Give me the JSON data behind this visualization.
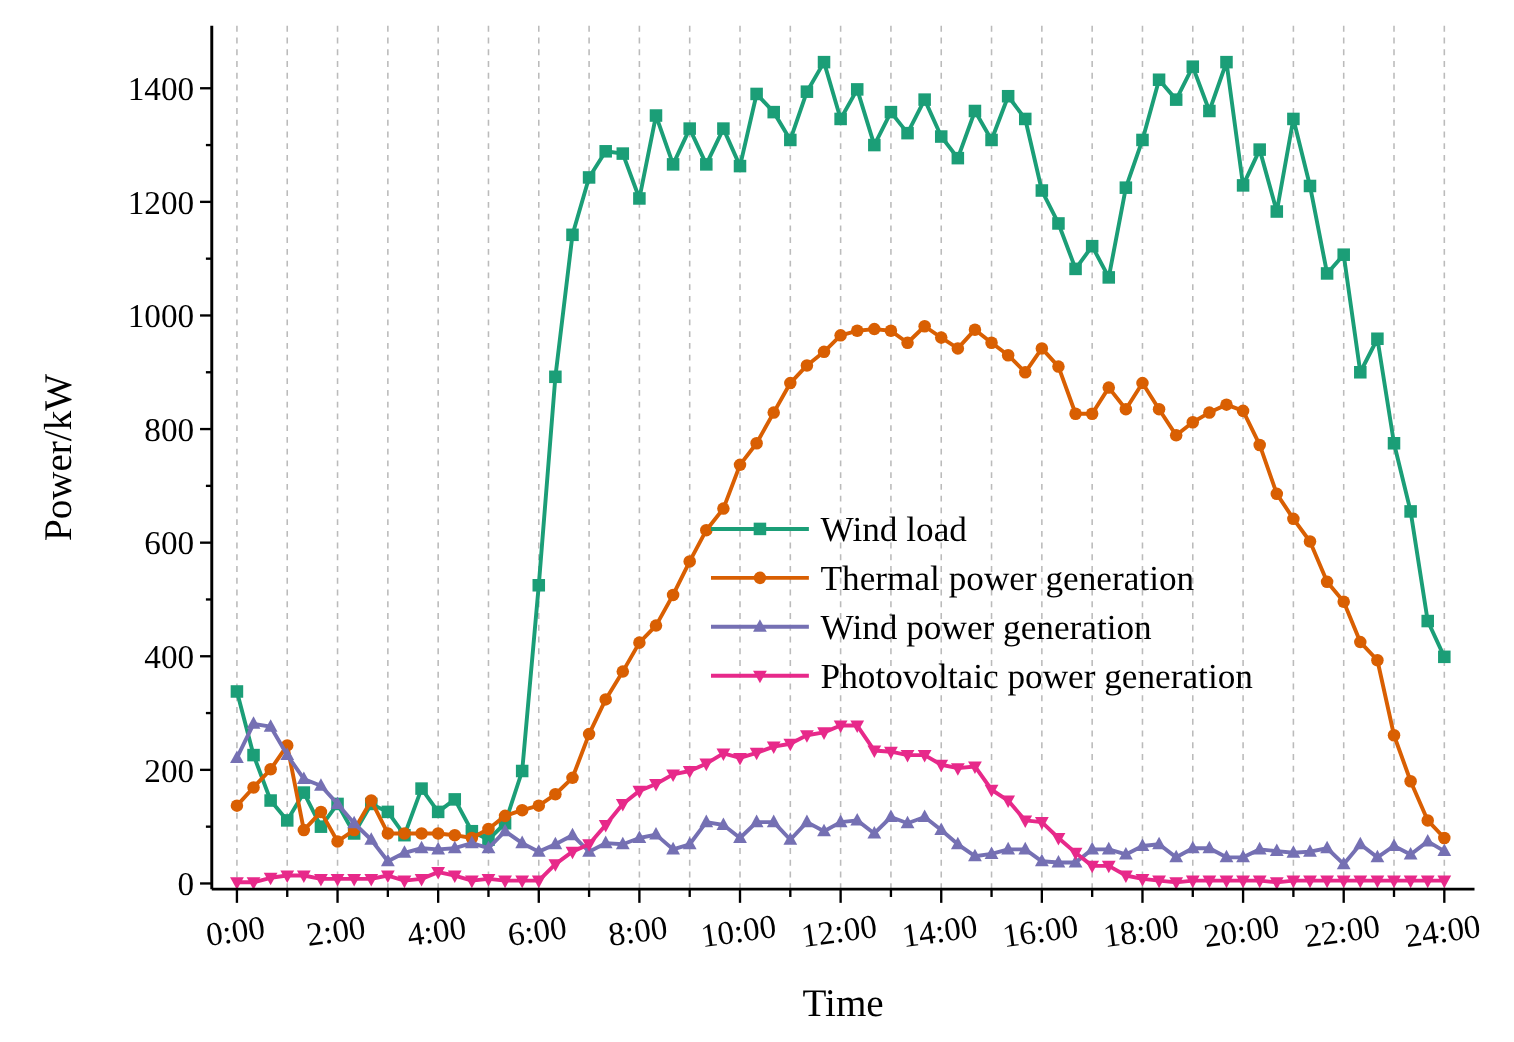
{
  "chart_data": {
    "type": "line",
    "xlabel": "Time",
    "ylabel": "Power/kW",
    "x": [
      0,
      0.33,
      0.67,
      1,
      1.33,
      1.67,
      2,
      2.33,
      2.67,
      3,
      3.33,
      3.67,
      4,
      4.33,
      4.67,
      5,
      5.33,
      5.67,
      6,
      6.33,
      6.67,
      7,
      7.33,
      7.67,
      8,
      8.33,
      8.67,
      9,
      9.33,
      9.67,
      10,
      10.33,
      10.67,
      11,
      11.33,
      11.67,
      12,
      12.33,
      12.67,
      13,
      13.33,
      13.67,
      14,
      14.33,
      14.67,
      15,
      15.33,
      15.67,
      16,
      16.33,
      16.67,
      17,
      17.33,
      17.67,
      18,
      18.33,
      18.67,
      19,
      19.33,
      19.67,
      20,
      20.33,
      20.67,
      21,
      21.33,
      21.67,
      22,
      22.33,
      22.67,
      23,
      23.33,
      23.67,
      24
    ],
    "series": [
      {
        "name": "Wind load",
        "color": "#1b9e77",
        "marker": "square",
        "values": [
          338,
          226,
          146,
          111,
          160,
          100,
          140,
          88,
          140,
          126,
          85,
          167,
          126,
          148,
          92,
          77,
          106,
          198,
          525,
          892,
          1142,
          1243,
          1289,
          1285,
          1206,
          1352,
          1266,
          1329,
          1266,
          1329,
          1263,
          1390,
          1358,
          1309,
          1394,
          1446,
          1346,
          1398,
          1300,
          1358,
          1321,
          1380,
          1315,
          1277,
          1360,
          1309,
          1386,
          1346,
          1220,
          1162,
          1082,
          1122,
          1067,
          1225,
          1309,
          1415,
          1380,
          1438,
          1360,
          1446,
          1229,
          1292,
          1183,
          1346,
          1228,
          1074,
          1107,
          900,
          959,
          775,
          655,
          462,
          399
        ]
      },
      {
        "name": "Thermal power generation",
        "color": "#d95f02",
        "marker": "circle",
        "values": [
          137,
          169,
          201,
          243,
          94,
          126,
          74,
          94,
          146,
          88,
          88,
          88,
          88,
          85,
          80,
          96,
          119,
          129,
          137,
          157,
          186,
          263,
          324,
          373,
          424,
          454,
          508,
          567,
          622,
          660,
          737,
          775,
          829,
          881,
          912,
          936,
          965,
          973,
          976,
          973,
          952,
          981,
          961,
          942,
          975,
          952,
          930,
          900,
          942,
          910,
          827,
          827,
          873,
          835,
          881,
          835,
          789,
          812,
          829,
          843,
          832,
          772,
          686,
          642,
          602,
          531,
          496,
          425,
          393,
          261,
          180,
          111,
          80
        ]
      },
      {
        "name": "Wind power generation",
        "color": "#7570b3",
        "marker": "triangle",
        "values": [
          221,
          281,
          276,
          226,
          184,
          172,
          140,
          106,
          77,
          39,
          54,
          62,
          60,
          62,
          71,
          62,
          92,
          71,
          56,
          69,
          85,
          56,
          71,
          69,
          80,
          86,
          60,
          69,
          108,
          103,
          80,
          108,
          108,
          77,
          108,
          92,
          108,
          111,
          88,
          117,
          106,
          117,
          94,
          69,
          48,
          52,
          60,
          60,
          39,
          37,
          37,
          60,
          60,
          51,
          66,
          69,
          46,
          62,
          62,
          46,
          46,
          60,
          57,
          54,
          56,
          62,
          34,
          69,
          46,
          66,
          51,
          74,
          57
        ]
      },
      {
        "name": "Photovoltaic power generation",
        "color": "#e7298a",
        "marker": "triangle-down",
        "values": [
          2,
          2,
          10,
          14,
          14,
          8,
          8,
          8,
          8,
          14,
          5,
          8,
          20,
          14,
          5,
          8,
          5,
          5,
          5,
          34,
          56,
          69,
          103,
          140,
          163,
          175,
          192,
          198,
          211,
          229,
          221,
          230,
          241,
          246,
          261,
          266,
          278,
          278,
          234,
          232,
          226,
          226,
          209,
          203,
          206,
          165,
          146,
          111,
          108,
          80,
          54,
          31,
          31,
          14,
          8,
          5,
          2,
          5,
          5,
          5,
          5,
          5,
          2,
          5,
          5,
          5,
          5,
          5,
          5,
          5,
          5,
          5,
          5
        ]
      }
    ],
    "xlim": [
      -0.5,
      24.6
    ],
    "ylim": [
      -10,
      1510
    ],
    "xticks": [
      {
        "value": 0,
        "label": "0:00"
      },
      {
        "value": 1,
        "label": null
      },
      {
        "value": 2,
        "label": "2:00"
      },
      {
        "value": 3,
        "label": null
      },
      {
        "value": 4,
        "label": "4:00"
      },
      {
        "value": 5,
        "label": null
      },
      {
        "value": 6,
        "label": "6:00"
      },
      {
        "value": 7,
        "label": null
      },
      {
        "value": 8,
        "label": "8:00"
      },
      {
        "value": 9,
        "label": null
      },
      {
        "value": 10,
        "label": "10:00"
      },
      {
        "value": 11,
        "label": null
      },
      {
        "value": 12,
        "label": "12:00"
      },
      {
        "value": 13,
        "label": null
      },
      {
        "value": 14,
        "label": "14:00"
      },
      {
        "value": 15,
        "label": null
      },
      {
        "value": 16,
        "label": "16:00"
      },
      {
        "value": 17,
        "label": null
      },
      {
        "value": 18,
        "label": "18:00"
      },
      {
        "value": 19,
        "label": null
      },
      {
        "value": 20,
        "label": "20:00"
      },
      {
        "value": 21,
        "label": null
      },
      {
        "value": 22,
        "label": "22:00"
      },
      {
        "value": 23,
        "label": null
      },
      {
        "value": 24,
        "label": "24:00"
      }
    ],
    "yticks": [
      0,
      {
        "value": 100,
        "label": null
      },
      200,
      {
        "value": 300,
        "label": null
      },
      400,
      {
        "value": 500,
        "label": null
      },
      600,
      {
        "value": 700,
        "label": null
      },
      800,
      {
        "value": 900,
        "label": null
      },
      1000,
      {
        "value": 1100,
        "label": null
      },
      1200,
      {
        "value": 1300,
        "label": null
      },
      1400
    ],
    "grid": "x",
    "legend": "bottom",
    "line_style": "solid"
  }
}
